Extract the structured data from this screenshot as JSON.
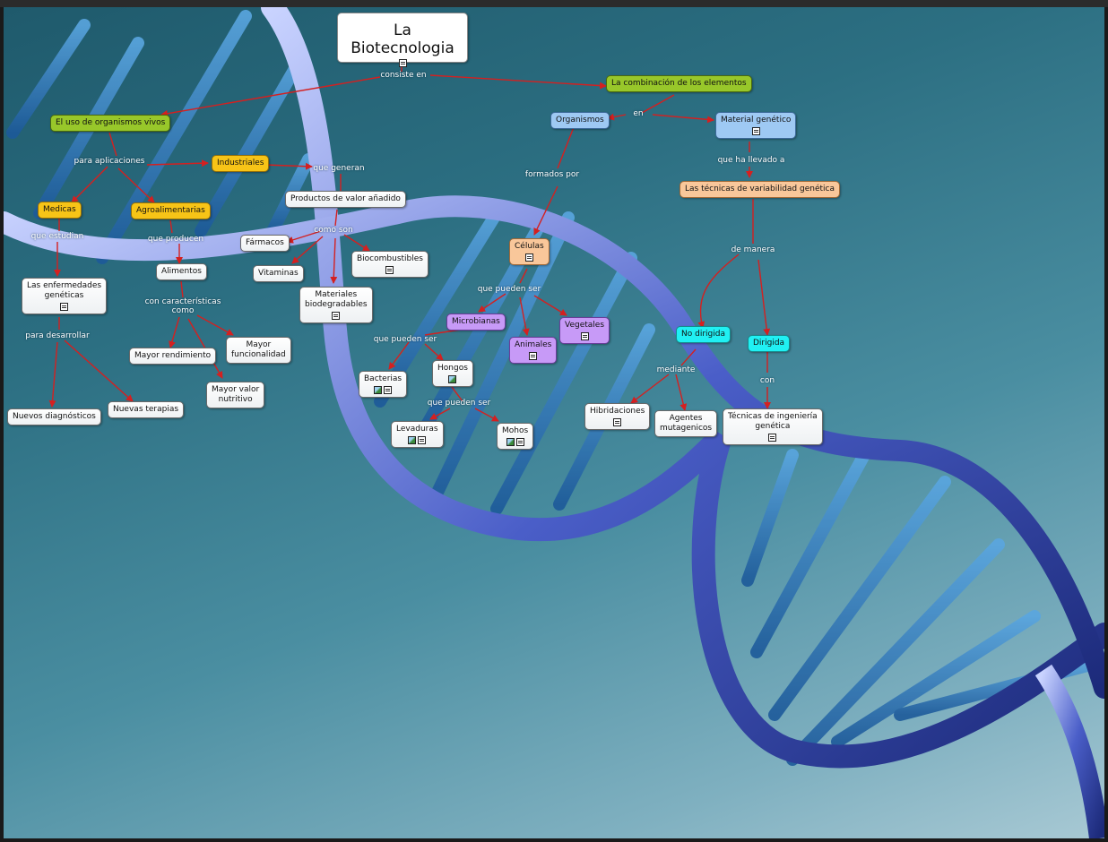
{
  "map": {
    "title": "La Biotecnologia",
    "accent_arrow": "#d42020",
    "nodes": {
      "combinacion": "La combinación de los elementos",
      "uso_organismos": "El uso de organismos vivos",
      "organismos": "Organismos",
      "material_genetico": "Material genético",
      "tecnicas_variabilidad": "Las técnicas de variabilidad genética",
      "industriales": "Industriales",
      "medicas": "Medicas",
      "agroalimentarias": "Agroalimentarias",
      "productos": "Productos de valor añadido",
      "farmacos": "Fármacos",
      "alimentos": "Alimentos",
      "vitaminas": "Vitaminas",
      "biocombustibles": "Biocombustibles",
      "materiales": "Materiales\nbiodegradables",
      "enfermedades": "Las enfermedades\ngenéticas",
      "mayor_rendimiento": "Mayor rendimiento",
      "mayor_funcionalidad": "Mayor\nfuncionalidad",
      "mayor_valor": "Mayor valor\nnutritivo",
      "nuevos_diagnosticos": "Nuevos diagnósticos",
      "nuevas_terapias": "Nuevas terapias",
      "celulas": "Células",
      "microbianas": "Microbianas",
      "vegetales": "Vegetales",
      "animales": "Animales",
      "bacterias": "Bacterias",
      "hongos": "Hongos",
      "levaduras": "Levaduras",
      "mohos": "Mohos",
      "no_dirigida": "No dirigida",
      "dirigida": "Dirigida",
      "hibridaciones": "Hibridaciones",
      "agentes": "Agentes\nmutagenicos",
      "tecnicas_ingenieria": "Técnicas de ingeniería\ngenética"
    },
    "links": {
      "consiste_en": "consiste en",
      "en": "en",
      "formados_por": "formados por",
      "que_ha_llevado_a": "que ha llevado a",
      "para_aplicaciones": "para aplicaciones",
      "que_generan": "que generan",
      "que_estudian": "que estudian",
      "que_producen": "que producen",
      "como_son": "como son",
      "que_pueden_ser_1": "que pueden ser",
      "de_manera": "de manera",
      "con_caracteristicas": "con características\ncomo",
      "para_desarrollar": "para desarrollar",
      "que_pueden_ser_2": "que pueden ser",
      "mediante": "mediante",
      "con": "con",
      "que_pueden_ser_3": "que pueden ser"
    }
  }
}
